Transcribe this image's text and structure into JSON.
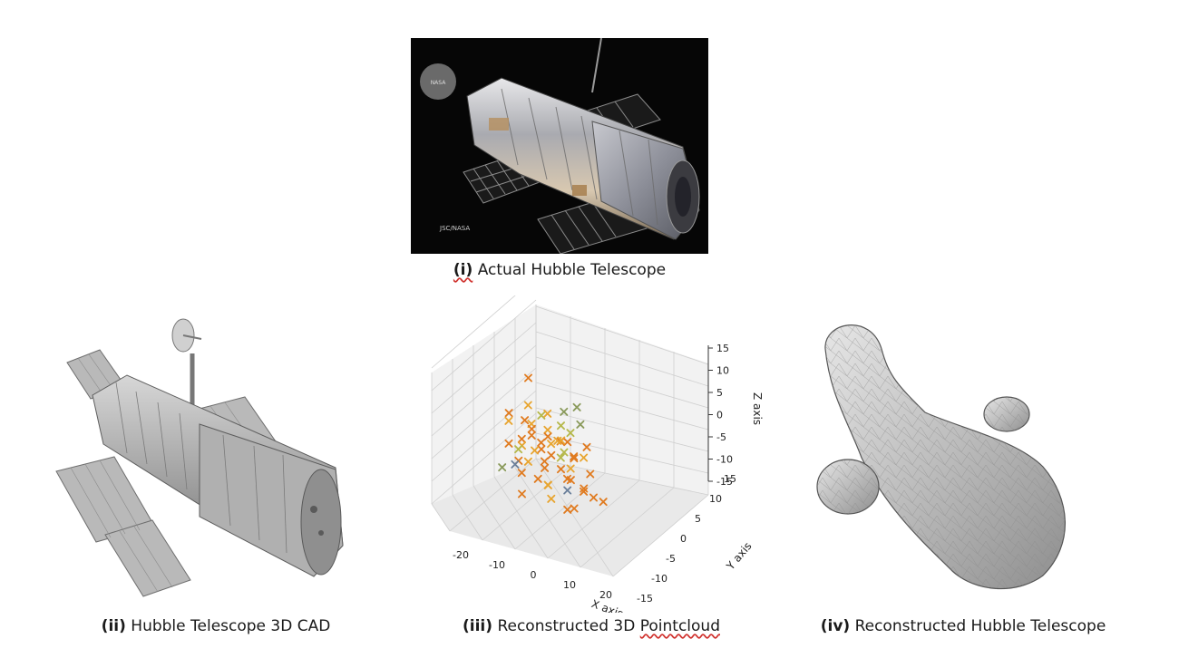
{
  "panels": [
    {
      "id": "i",
      "label": "(i)",
      "caption": "Actual Hubble Telescope",
      "photo_marks": {
        "logo": "NASA",
        "credit": "JSC/NASA"
      }
    },
    {
      "id": "ii",
      "label": "(ii)",
      "caption": "Hubble Telescope 3D CAD"
    },
    {
      "id": "iii",
      "label": "(iii)",
      "caption_pre": "Reconstructed 3D ",
      "caption_flag": "Pointcloud"
    },
    {
      "id": "iv",
      "label": "(iv)",
      "caption": "Reconstructed Hubble Telescope"
    }
  ],
  "chart_data": {
    "type": "scatter",
    "projection": "3d",
    "marker": "x",
    "xlabel": "X axis",
    "ylabel": "Y axis",
    "zlabel": "Z axis",
    "xticks": [
      -20,
      -10,
      0,
      10,
      20
    ],
    "yticks": [
      -15,
      -10,
      -5,
      0,
      5,
      10,
      15
    ],
    "zticks": [
      15,
      10,
      5,
      0,
      -5,
      -10,
      -15
    ],
    "xlim": [
      -25,
      25
    ],
    "ylim": [
      -15,
      15
    ],
    "zlim": [
      -15,
      15
    ],
    "grid": true,
    "colors": [
      "#e07b20",
      "#e8a530",
      "#b5b84a",
      "#8a9a5b",
      "#6a7f9a"
    ],
    "points": [
      [
        -10,
        0,
        12,
        0
      ],
      [
        -14,
        -2,
        5,
        0
      ],
      [
        -12,
        2,
        5,
        1
      ],
      [
        -6,
        0,
        5,
        2
      ],
      [
        -2,
        3,
        5,
        3
      ],
      [
        0,
        0,
        4,
        2
      ],
      [
        4,
        2,
        4,
        3
      ],
      [
        -16,
        0,
        2,
        1
      ],
      [
        -14,
        3,
        1,
        0
      ],
      [
        -10,
        1,
        2,
        1
      ],
      [
        -8,
        -1,
        1,
        0
      ],
      [
        -6,
        2,
        1,
        1
      ],
      [
        -4,
        0,
        1,
        0
      ],
      [
        -2,
        1,
        0,
        1
      ],
      [
        0,
        3,
        1,
        2
      ],
      [
        2,
        0,
        1,
        0
      ],
      [
        -12,
        0,
        -1,
        0
      ],
      [
        -10,
        -2,
        -1,
        1
      ],
      [
        -8,
        2,
        -2,
        0
      ],
      [
        -6,
        0,
        -2,
        0
      ],
      [
        -4,
        1,
        -1,
        1
      ],
      [
        -2,
        -1,
        -2,
        0
      ],
      [
        0,
        1,
        -2,
        2
      ],
      [
        2,
        2,
        -3,
        0
      ],
      [
        4,
        0,
        -2,
        0
      ],
      [
        6,
        1,
        -2,
        1
      ],
      [
        -14,
        1,
        -4,
        2
      ],
      [
        -12,
        -1,
        -5,
        0
      ],
      [
        -10,
        2,
        -4,
        1
      ],
      [
        -6,
        1,
        -5,
        0
      ],
      [
        -4,
        -1,
        -5,
        0
      ],
      [
        -2,
        2,
        -4,
        2
      ],
      [
        0,
        0,
        -5,
        0
      ],
      [
        2,
        1,
        -5,
        1
      ],
      [
        4,
        -1,
        -6,
        0
      ],
      [
        8,
        1,
        -5,
        0
      ],
      [
        -18,
        0,
        -8,
        3
      ],
      [
        -16,
        2,
        -8,
        4
      ],
      [
        -12,
        0,
        -8,
        0
      ],
      [
        -8,
        1,
        -9,
        0
      ],
      [
        -4,
        0,
        -9,
        1
      ],
      [
        0,
        2,
        -8,
        0
      ],
      [
        2,
        0,
        -9,
        4
      ],
      [
        6,
        1,
        -9,
        0
      ],
      [
        10,
        0,
        -9,
        0
      ],
      [
        -10,
        -2,
        -11,
        0
      ],
      [
        -2,
        -1,
        -11,
        1
      ],
      [
        6,
        -2,
        -11,
        0
      ],
      [
        12,
        1,
        -10,
        0
      ],
      [
        2,
        0,
        -13,
        0
      ],
      [
        -8,
        4,
        3,
        1
      ],
      [
        -4,
        4,
        -2,
        0
      ],
      [
        3,
        -3,
        3,
        1
      ],
      [
        -11,
        1,
        -6,
        1
      ],
      [
        5,
        3,
        -1,
        0
      ],
      [
        -7,
        -2,
        3,
        0
      ],
      [
        -1,
        -3,
        -7,
        1
      ],
      [
        1,
        4,
        6,
        3
      ],
      [
        -15,
        -1,
        -2,
        0
      ],
      [
        8,
        -1,
        -7,
        0
      ]
    ]
  }
}
